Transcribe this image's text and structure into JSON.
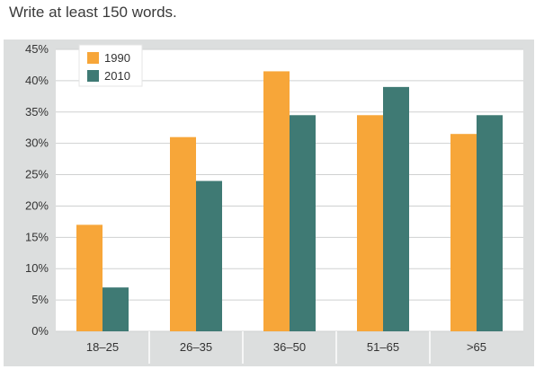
{
  "instruction": "Write at least 150 words.",
  "colors": {
    "s1990": "#f7a639",
    "s2010": "#3f7a74",
    "panel": "#dcdede",
    "plot": "#ffffff",
    "grid": "#cfd1d1"
  },
  "chart_data": {
    "type": "bar",
    "title": "",
    "xlabel": "",
    "ylabel": "",
    "categories": [
      "18–25",
      "26–35",
      "36–50",
      "51–65",
      ">65"
    ],
    "series": [
      {
        "name": "1990",
        "values": [
          17,
          31,
          41.5,
          34.5,
          31.5
        ]
      },
      {
        "name": "2010",
        "values": [
          7,
          24,
          34.5,
          39,
          34.5
        ]
      }
    ],
    "ylim": [
      0,
      45
    ],
    "yticks": [
      "0%",
      "5%",
      "10%",
      "15%",
      "20%",
      "25%",
      "30%",
      "35%",
      "40%",
      "45%"
    ],
    "grid": true,
    "legend_position": "top-left"
  }
}
